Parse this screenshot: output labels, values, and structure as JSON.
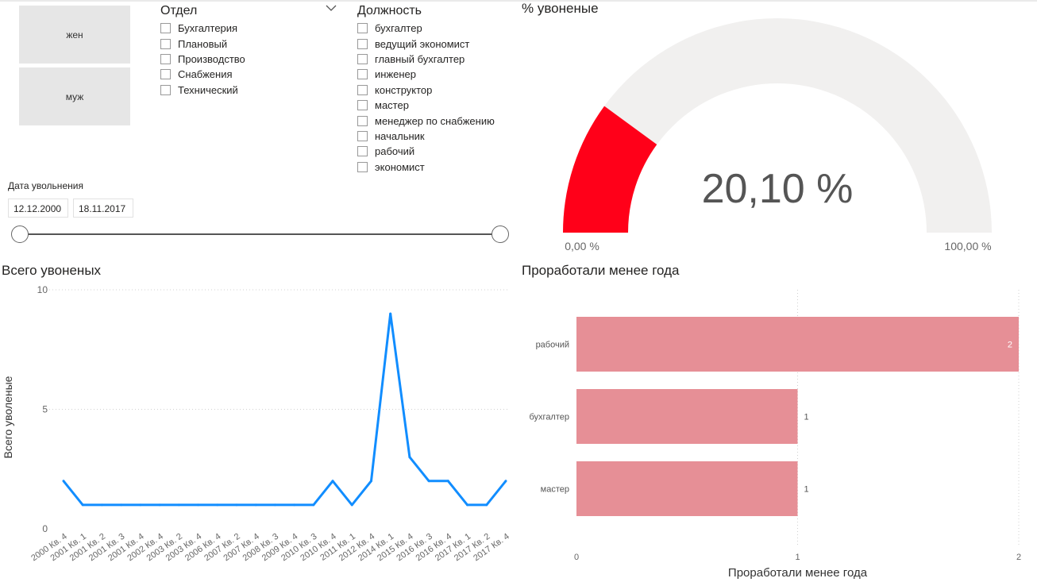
{
  "gender_buttons": [
    "жен",
    "муж"
  ],
  "department": {
    "title": "Отдел",
    "items": [
      "Бухгалтерия",
      "Плановый",
      "Производство",
      "Снабжения",
      "Технический"
    ]
  },
  "position": {
    "title": "Должность",
    "items": [
      "бухгалтер",
      "ведущий экономист",
      "главный бухгалтер",
      "инженер",
      "конструктор",
      "мастер",
      "менеджер по снабжению",
      "начальник",
      "рабочий",
      "экономист"
    ]
  },
  "date_slicer": {
    "title": "Дата увольнения",
    "start": "12.12.2000",
    "end": "18.11.2017"
  },
  "colors": {
    "gauge_fill": "#ff0019",
    "gauge_bg": "#f1f0ef",
    "line": "#118dff",
    "bar": "#e68f96"
  },
  "chart_data": [
    {
      "type": "gauge",
      "title": "% увоненые",
      "value": 20.1,
      "value_label": "20,10 %",
      "min_label": "0,00 %",
      "max_label": "100,00 %",
      "min": 0,
      "max": 100
    },
    {
      "type": "line",
      "title": "Всего увоненых",
      "ylabel": "Всего уволеные",
      "ylim": [
        0,
        10
      ],
      "yticks": [
        0,
        5,
        10
      ],
      "grid": true,
      "categories": [
        "2000 Кв. 4",
        "2001 Кв. 1",
        "2001 Кв. 2",
        "2001 Кв. 3",
        "2001 Кв. 4",
        "2002 Кв. 4",
        "2003 Кв. 2",
        "2003 Кв. 4",
        "2006 Кв. 4",
        "2007 Кв. 2",
        "2007 Кв. 4",
        "2008 Кв. 3",
        "2009 Кв. 4",
        "2010 Кв. 3",
        "2010 Кв. 4",
        "2011 Кв. 1",
        "2012 Кв. 4",
        "2014 Кв. 1",
        "2015 Кв. 4",
        "2016 Кв. 3",
        "2016 Кв. 4",
        "2017 Кв. 1",
        "2017 Кв. 2",
        "2017 Кв. 4"
      ],
      "values": [
        2,
        1,
        1,
        1,
        1,
        1,
        1,
        1,
        1,
        1,
        1,
        1,
        1,
        1,
        2,
        1,
        2,
        9,
        3,
        2,
        2,
        1,
        1,
        2
      ]
    },
    {
      "type": "bar",
      "orientation": "horizontal",
      "title": "Проработали менее года",
      "xlabel": "Проработали менее года",
      "xlim": [
        0,
        2
      ],
      "xticks": [
        0,
        1,
        2
      ],
      "grid": true,
      "categories": [
        "рабочий",
        "бухгалтер",
        "мастер"
      ],
      "values": [
        2,
        1,
        1
      ],
      "data_labels": [
        "2",
        "1",
        "1"
      ]
    }
  ]
}
